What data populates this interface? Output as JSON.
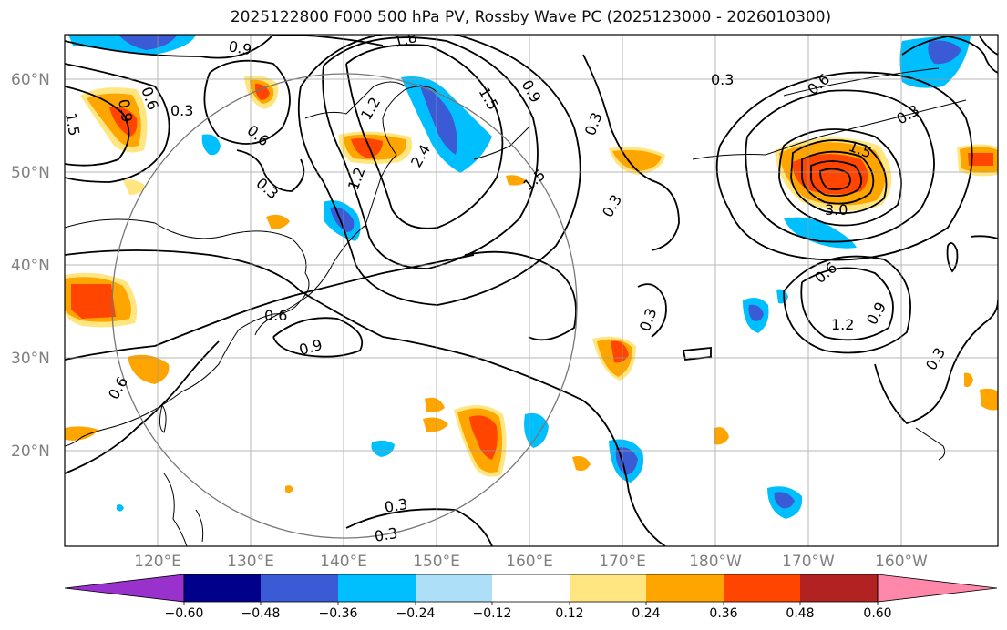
{
  "title": "2025122800 F000 500 hPa PV, Rossby Wave PC (2025123000 - 2026010300)",
  "lat_labels": [
    "60°N",
    "50°N",
    "40°N",
    "30°N",
    "20°N"
  ],
  "lon_labels": [
    "120°E",
    "130°E",
    "140°E",
    "150°E",
    "160°E",
    "170°E",
    "180°W",
    "170°W",
    "160°W"
  ],
  "colorbar": {
    "ticks": [
      "−0.60",
      "−0.48",
      "−0.36",
      "−0.24",
      "−0.12",
      "0.12",
      "0.24",
      "0.36",
      "0.48",
      "0.60"
    ],
    "colors": [
      "#9932cc",
      "#00008b",
      "#3a5ad6",
      "#00bfff",
      "#ade0f8",
      "#ffffff",
      "#ffe680",
      "#ffa500",
      "#ff4500",
      "#b22222",
      "#ff88aa"
    ]
  },
  "contour_labels": [
    "0.9",
    "1.8",
    "0.6",
    "0.3",
    "1.5",
    "0.9",
    "0.3",
    "0.3",
    "0.6",
    "1.5",
    "0.9",
    "0.3",
    "0.6",
    "0.3",
    "2.4",
    "1.2",
    "1.2",
    "1.5",
    "0.3",
    "1.5",
    "3.0",
    "0.6",
    "1.2",
    "0.9",
    "0.3",
    "0.3",
    "0.6",
    "0.9",
    "0.6",
    "0.3",
    "0.3"
  ]
}
